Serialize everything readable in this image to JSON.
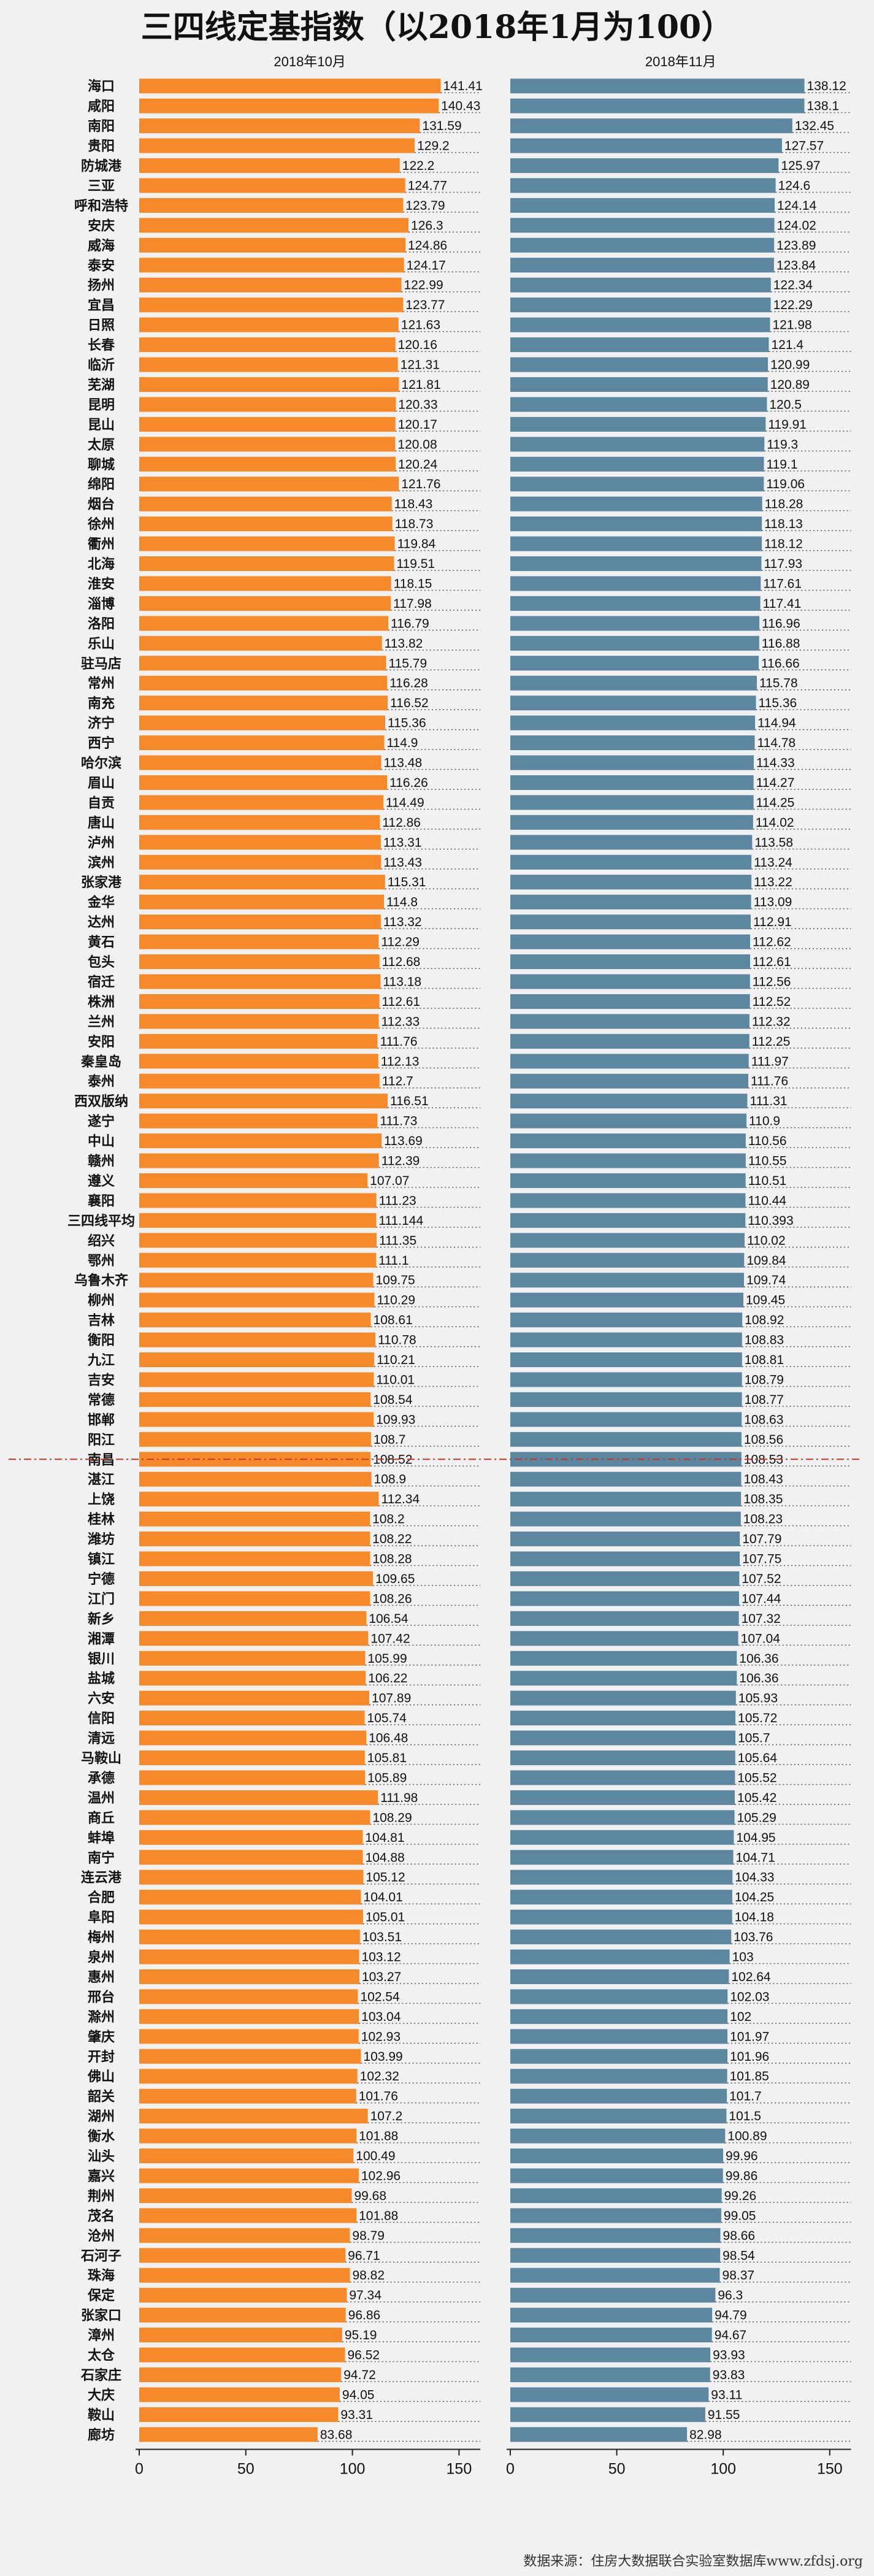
{
  "title": "三四线定基指数（以2018年1月为100）",
  "source": "数据来源：住房大数据联合实验室数据库www.zfdsj.org",
  "chart_data": {
    "type": "bar",
    "orientation": "horizontal",
    "colors": {
      "oct": "#f68a2a",
      "nov": "#5d87a1",
      "avg_line": "#c0392b",
      "dots": "#555555"
    },
    "xlim": [
      0,
      160
    ],
    "xticks": [
      0,
      50,
      100,
      150
    ],
    "avg_index": 69,
    "categories": [
      "海口",
      "咸阳",
      "南阳",
      "贵阳",
      "防城港",
      "三亚",
      "呼和浩特",
      "安庆",
      "威海",
      "泰安",
      "扬州",
      "宜昌",
      "日照",
      "长春",
      "临沂",
      "芜湖",
      "昆明",
      "昆山",
      "太原",
      "聊城",
      "绵阳",
      "烟台",
      "徐州",
      "衢州",
      "北海",
      "淮安",
      "淄博",
      "洛阳",
      "乐山",
      "驻马店",
      "常州",
      "南充",
      "济宁",
      "西宁",
      "哈尔滨",
      "眉山",
      "自贡",
      "唐山",
      "泸州",
      "滨州",
      "张家港",
      "金华",
      "达州",
      "黄石",
      "包头",
      "宿迁",
      "株洲",
      "兰州",
      "安阳",
      "秦皇岛",
      "泰州",
      "西双版纳",
      "遂宁",
      "中山",
      "赣州",
      "遵义",
      "襄阳",
      "三四线平均",
      "绍兴",
      "鄂州",
      "乌鲁木齐",
      "柳州",
      "吉林",
      "衡阳",
      "九江",
      "吉安",
      "常德",
      "邯郸",
      "阳江",
      "南昌",
      "湛江",
      "上饶",
      "桂林",
      "潍坊",
      "镇江",
      "宁德",
      "江门",
      "新乡",
      "湘潭",
      "银川",
      "盐城",
      "六安",
      "信阳",
      "清远",
      "马鞍山",
      "承德",
      "温州",
      "商丘",
      "蚌埠",
      "南宁",
      "连云港",
      "合肥",
      "阜阳",
      "梅州",
      "泉州",
      "惠州",
      "邢台",
      "滁州",
      "肇庆",
      "开封",
      "佛山",
      "韶关",
      "湖州",
      "衡水",
      "汕头",
      "嘉兴",
      "荆州",
      "茂名",
      "沧州",
      "石河子",
      "珠海",
      "保定",
      "张家口",
      "漳州",
      "太仓",
      "石家庄",
      "大庆",
      "鞍山",
      "廊坊"
    ],
    "series": [
      {
        "name": "2018年10月",
        "values": [
          141.41,
          140.43,
          131.59,
          129.2,
          122.2,
          124.77,
          123.79,
          126.3,
          124.86,
          124.17,
          122.99,
          123.77,
          121.63,
          120.16,
          121.31,
          121.81,
          120.33,
          120.17,
          120.08,
          120.24,
          121.76,
          118.43,
          118.73,
          119.84,
          119.51,
          118.15,
          117.98,
          116.79,
          113.82,
          115.79,
          116.28,
          116.52,
          115.36,
          114.9,
          113.48,
          116.26,
          114.49,
          112.86,
          113.31,
          113.43,
          115.31,
          114.8,
          113.32,
          112.29,
          112.68,
          113.18,
          112.61,
          112.33,
          111.76,
          112.13,
          112.7,
          116.51,
          111.73,
          113.69,
          112.39,
          107.07,
          111.23,
          111.144,
          111.35,
          111.1,
          109.75,
          110.29,
          108.61,
          110.78,
          110.21,
          110.01,
          108.54,
          109.93,
          108.7,
          108.52,
          108.9,
          112.34,
          108.2,
          108.22,
          108.28,
          109.65,
          108.26,
          106.54,
          107.42,
          105.99,
          106.22,
          107.89,
          105.74,
          106.48,
          105.81,
          105.89,
          111.98,
          108.29,
          104.81,
          104.88,
          105.12,
          104.01,
          105.01,
          103.51,
          103.12,
          103.27,
          102.54,
          103.04,
          102.93,
          103.99,
          102.32,
          101.76,
          107.2,
          101.88,
          100.49,
          102.96,
          99.68,
          101.88,
          98.79,
          96.71,
          98.82,
          97.34,
          96.86,
          95.19,
          96.52,
          94.72,
          94.05,
          93.31,
          83.68
        ]
      },
      {
        "name": "2018年11月",
        "values": [
          138.12,
          138.1,
          132.45,
          127.57,
          125.97,
          124.6,
          124.14,
          124.02,
          123.89,
          123.84,
          122.34,
          122.29,
          121.98,
          121.4,
          120.99,
          120.89,
          120.5,
          119.91,
          119.3,
          119.1,
          119.06,
          118.28,
          118.13,
          118.12,
          117.93,
          117.61,
          117.41,
          116.96,
          116.88,
          116.66,
          115.78,
          115.36,
          114.94,
          114.78,
          114.33,
          114.27,
          114.25,
          114.02,
          113.58,
          113.24,
          113.22,
          113.09,
          112.91,
          112.62,
          112.61,
          112.56,
          112.52,
          112.32,
          112.25,
          111.97,
          111.76,
          111.31,
          110.9,
          110.56,
          110.55,
          110.51,
          110.44,
          110.393,
          110.02,
          109.84,
          109.74,
          109.45,
          108.92,
          108.83,
          108.81,
          108.79,
          108.77,
          108.63,
          108.56,
          108.53,
          108.43,
          108.35,
          108.23,
          107.79,
          107.75,
          107.52,
          107.44,
          107.32,
          107.04,
          106.36,
          106.36,
          105.93,
          105.72,
          105.7,
          105.64,
          105.52,
          105.42,
          105.29,
          104.95,
          104.71,
          104.33,
          104.25,
          104.18,
          103.76,
          103,
          102.64,
          102.03,
          102,
          101.97,
          101.96,
          101.85,
          101.7,
          101.5,
          100.89,
          99.96,
          99.86,
          99.26,
          99.05,
          98.66,
          98.54,
          98.37,
          96.3,
          94.79,
          94.67,
          93.93,
          93.83,
          93.11,
          91.55,
          82.98
        ]
      }
    ]
  }
}
